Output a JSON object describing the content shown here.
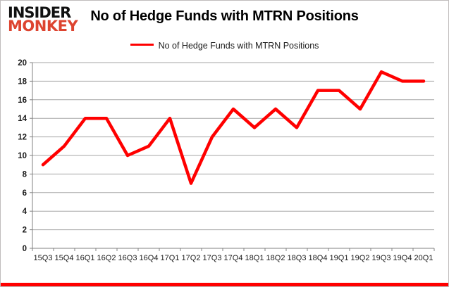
{
  "logo": {
    "line1": "INSIDER",
    "line2": "MONKEY"
  },
  "header": {
    "title": "No of Hedge Funds with MTRN Positions"
  },
  "legend": {
    "label": "No of Hedge Funds with MTRN Positions"
  },
  "colors": {
    "series_line": "#ff0000",
    "logo_accent": "#dd4430",
    "gridline": "#a6a6a6",
    "axis": "#808080",
    "axis_label": "#1a1a1a",
    "bottom_strip": "#ff0000"
  },
  "chart_data": {
    "type": "line",
    "title": "No of Hedge Funds with MTRN Positions",
    "xlabel": "",
    "ylabel": "",
    "categories": [
      "15Q3",
      "15Q4",
      "16Q1",
      "16Q2",
      "16Q3",
      "16Q4",
      "17Q1",
      "17Q2",
      "17Q3",
      "17Q4",
      "18Q1",
      "18Q2",
      "18Q3",
      "18Q4",
      "19Q1",
      "19Q2",
      "19Q3",
      "19Q4",
      "20Q1"
    ],
    "series": [
      {
        "name": "No of Hedge Funds with MTRN Positions",
        "color": "#ff0000",
        "values": [
          9,
          11,
          14,
          14,
          10,
          11,
          14,
          7,
          12,
          15,
          13,
          15,
          13,
          17,
          17,
          15,
          19,
          18,
          18
        ]
      }
    ],
    "ylim": [
      0,
      20
    ],
    "yticks": [
      0,
      2,
      4,
      6,
      8,
      10,
      12,
      14,
      16,
      18,
      20
    ],
    "grid": true,
    "legend_position": "top-center"
  }
}
